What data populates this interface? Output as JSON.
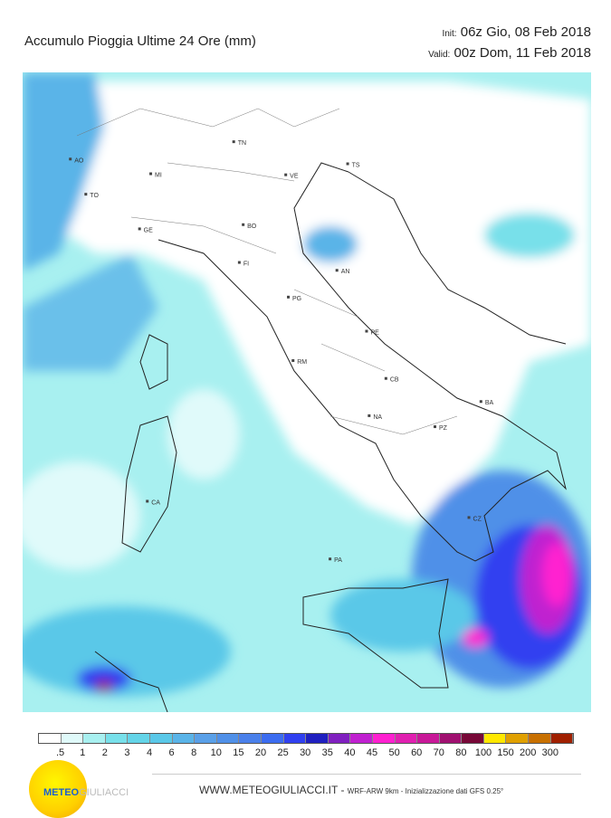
{
  "header": {
    "title": "Accumulo Pioggia Ultime 24 Ore   (mm)",
    "init_label": "Init:",
    "init_value": "06z Gio, 08 Feb 2018",
    "valid_label": "Valid:",
    "valid_value": "00z Dom, 11 Feb 2018"
  },
  "map": {
    "cities": [
      {
        "code": "TN",
        "lon": 11.12,
        "lat": 46.07
      },
      {
        "code": "AO",
        "lon": 7.32,
        "lat": 45.74
      },
      {
        "code": "MI",
        "lon": 9.19,
        "lat": 45.46
      },
      {
        "code": "VE",
        "lon": 12.33,
        "lat": 45.44
      },
      {
        "code": "TS",
        "lon": 13.77,
        "lat": 45.65
      },
      {
        "code": "TO",
        "lon": 7.68,
        "lat": 45.07
      },
      {
        "code": "BO",
        "lon": 11.34,
        "lat": 44.49
      },
      {
        "code": "GE",
        "lon": 8.93,
        "lat": 44.41
      },
      {
        "code": "FI",
        "lon": 11.25,
        "lat": 43.77
      },
      {
        "code": "AN",
        "lon": 13.52,
        "lat": 43.62
      },
      {
        "code": "PG",
        "lon": 12.39,
        "lat": 43.11
      },
      {
        "code": "PE",
        "lon": 14.21,
        "lat": 42.46
      },
      {
        "code": "RM",
        "lon": 12.5,
        "lat": 41.9
      },
      {
        "code": "CB",
        "lon": 14.66,
        "lat": 41.56
      },
      {
        "code": "BA",
        "lon": 16.87,
        "lat": 41.12
      },
      {
        "code": "NA",
        "lon": 14.27,
        "lat": 40.85
      },
      {
        "code": "PZ",
        "lon": 15.8,
        "lat": 40.64
      },
      {
        "code": "CZ",
        "lon": 16.59,
        "lat": 38.91
      },
      {
        "code": "CA",
        "lon": 9.11,
        "lat": 39.22
      },
      {
        "code": "PA",
        "lon": 13.36,
        "lat": 38.12
      }
    ]
  },
  "legend": {
    "unit": "mm",
    "labels": [
      ".5",
      "1",
      "2",
      "3",
      "4",
      "6",
      "8",
      "10",
      "15",
      "20",
      "25",
      "30",
      "35",
      "40",
      "45",
      "50",
      "60",
      "70",
      "80",
      "100",
      "150",
      "200",
      "300"
    ],
    "colors": [
      "#ffffff",
      "#e0fafa",
      "#a8f0f0",
      "#78e0ea",
      "#64d4e8",
      "#5ac8e8",
      "#5ab4e8",
      "#5aa0e8",
      "#5090e8",
      "#4a80ea",
      "#3c6cf0",
      "#3040f0",
      "#2020c0",
      "#8020c0",
      "#c020d0",
      "#ff20d0",
      "#e020b0",
      "#c81898",
      "#a01070",
      "#780838",
      "#ffe800",
      "#e0a000",
      "#c87000",
      "#a02000"
    ]
  },
  "footer": {
    "site": "WWW.METEOGIULIACCI.IT - ",
    "model": "WRF-ARW 9km - Inizializzazione dati GFS 0.25°",
    "logo_a": "METEO",
    "logo_b": "GIULIACCI"
  }
}
